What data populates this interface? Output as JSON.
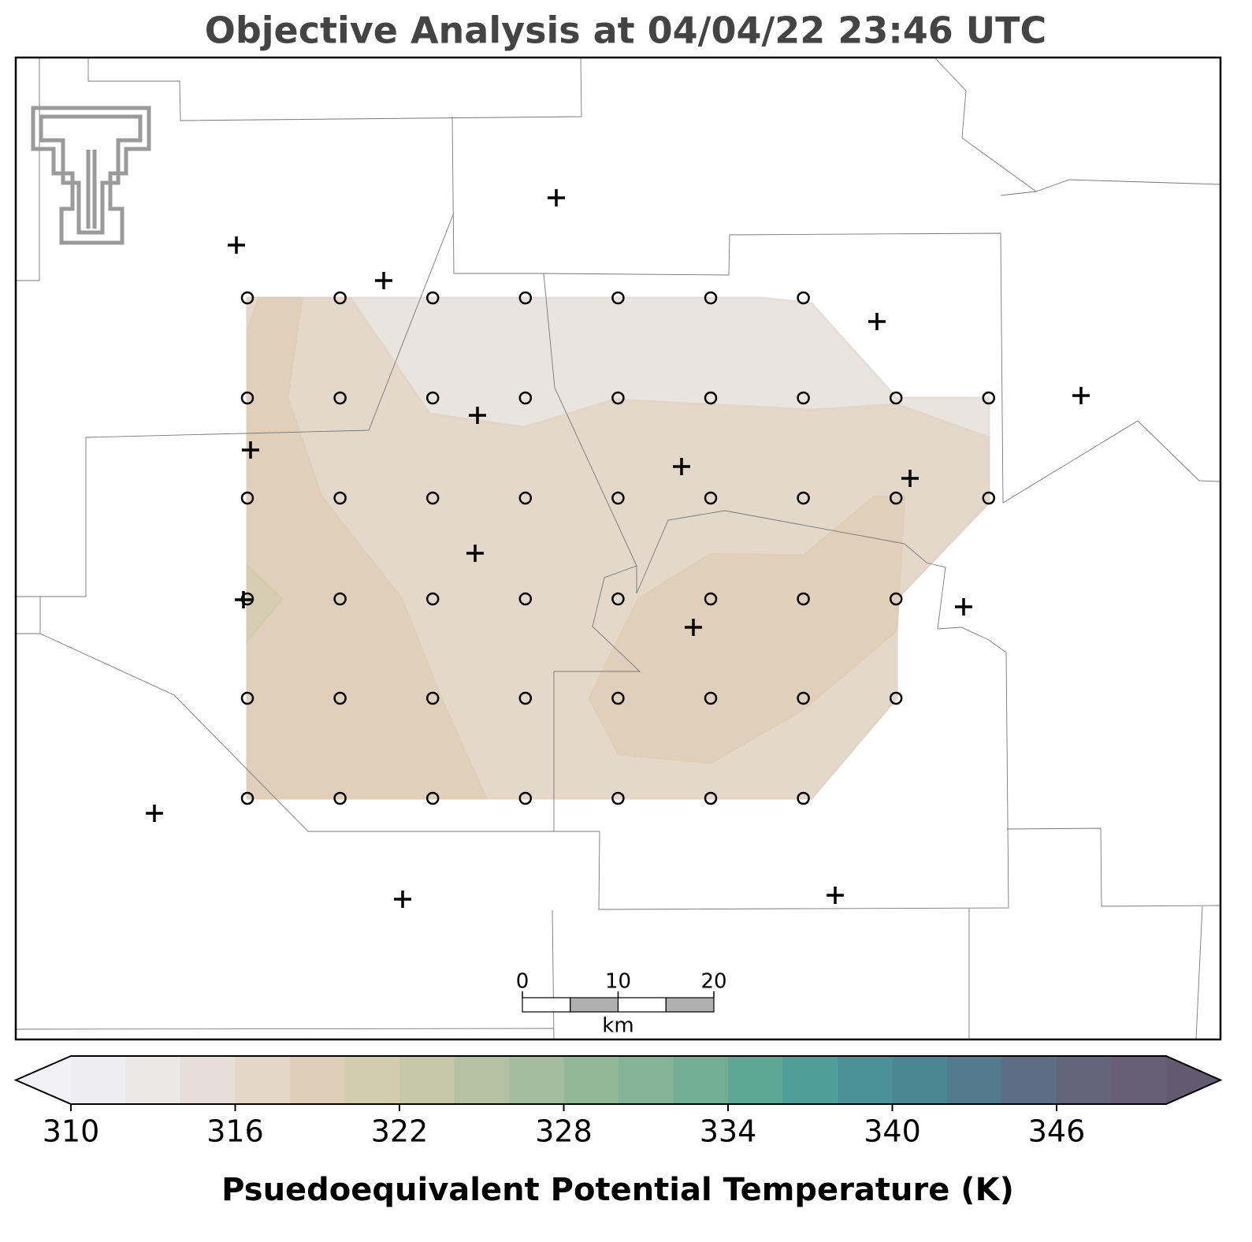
{
  "title": "Objective Analysis at 04/04/22 23:46 UTC",
  "colorbar": {
    "label": "Psuedoequivalent Potential Temperature (K)",
    "levels": [
      310,
      312,
      314,
      316,
      318,
      320,
      322,
      324,
      326,
      328,
      330,
      332,
      334,
      336,
      338,
      340,
      342,
      344,
      346,
      348,
      350
    ],
    "colors": [
      "#eeedf1",
      "#ece8e8",
      "#e6dfd8",
      "#e3d6c8",
      "#dfcfb8",
      "#d3cdb0",
      "#c6c7a8",
      "#b4c2a3",
      "#a3bd9e",
      "#93b899",
      "#84b396",
      "#73ae94",
      "#5fa795",
      "#4f9e97",
      "#4a9297",
      "#4b8694",
      "#547a8e",
      "#5d6e84",
      "#636479",
      "#675f73"
    ],
    "under_color": "#f1f1f6",
    "over_color": "#635a70",
    "ticks": [
      310,
      316,
      322,
      328,
      334,
      340,
      346
    ]
  },
  "scale_bar": {
    "ticks": [
      0,
      10,
      20
    ],
    "unit": "km"
  }
}
